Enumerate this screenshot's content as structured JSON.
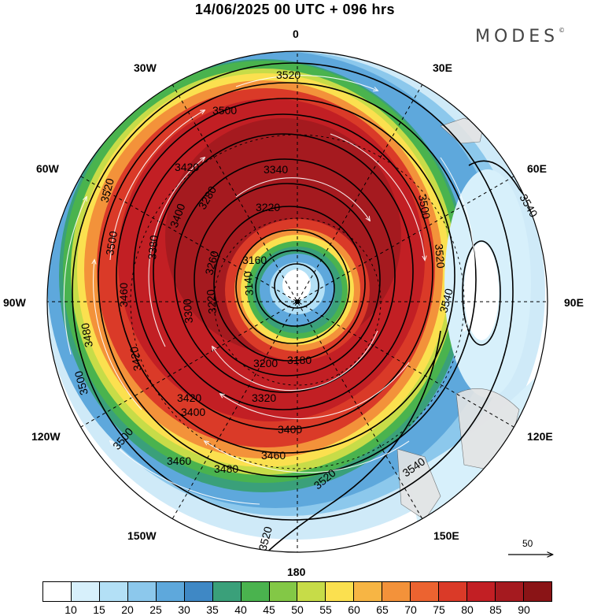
{
  "header": {
    "title": "14/06/2025  00 UTC  + 096 hrs",
    "brand": "MODES",
    "brand_mark": "©"
  },
  "longitudes": {
    "n0": "0",
    "w30": "30W",
    "e30": "30E",
    "w60": "60W",
    "e60": "60E",
    "w90": "90W",
    "e90": "90E",
    "w120": "120W",
    "e120": "120E",
    "w150": "150W",
    "e150": "150E",
    "s180": "180"
  },
  "contour_labels": [
    "3520",
    "3500",
    "3460",
    "3420",
    "3340",
    "3300",
    "3220",
    "3160",
    "3140",
    "3120",
    "3180",
    "3200",
    "3260",
    "3280",
    "3320",
    "3380",
    "3400",
    "3440",
    "3480",
    "3540"
  ],
  "reference_vector": {
    "label": "50"
  },
  "colorbar": {
    "colors": [
      "#ffffff",
      "#d7f0fb",
      "#b3e0f6",
      "#8cc8ec",
      "#5ea8dc",
      "#3f88c5",
      "#3aa07a",
      "#4ab34e",
      "#83c846",
      "#c7dc48",
      "#fbe04f",
      "#f7b544",
      "#f3923a",
      "#ec6330",
      "#da3a28",
      "#c21f24",
      "#a51a1f",
      "#8a1416"
    ],
    "ticks": [
      "10",
      "15",
      "20",
      "25",
      "30",
      "35",
      "40",
      "45",
      "50",
      "55",
      "60",
      "65",
      "70",
      "75",
      "80",
      "85",
      "90"
    ]
  }
}
